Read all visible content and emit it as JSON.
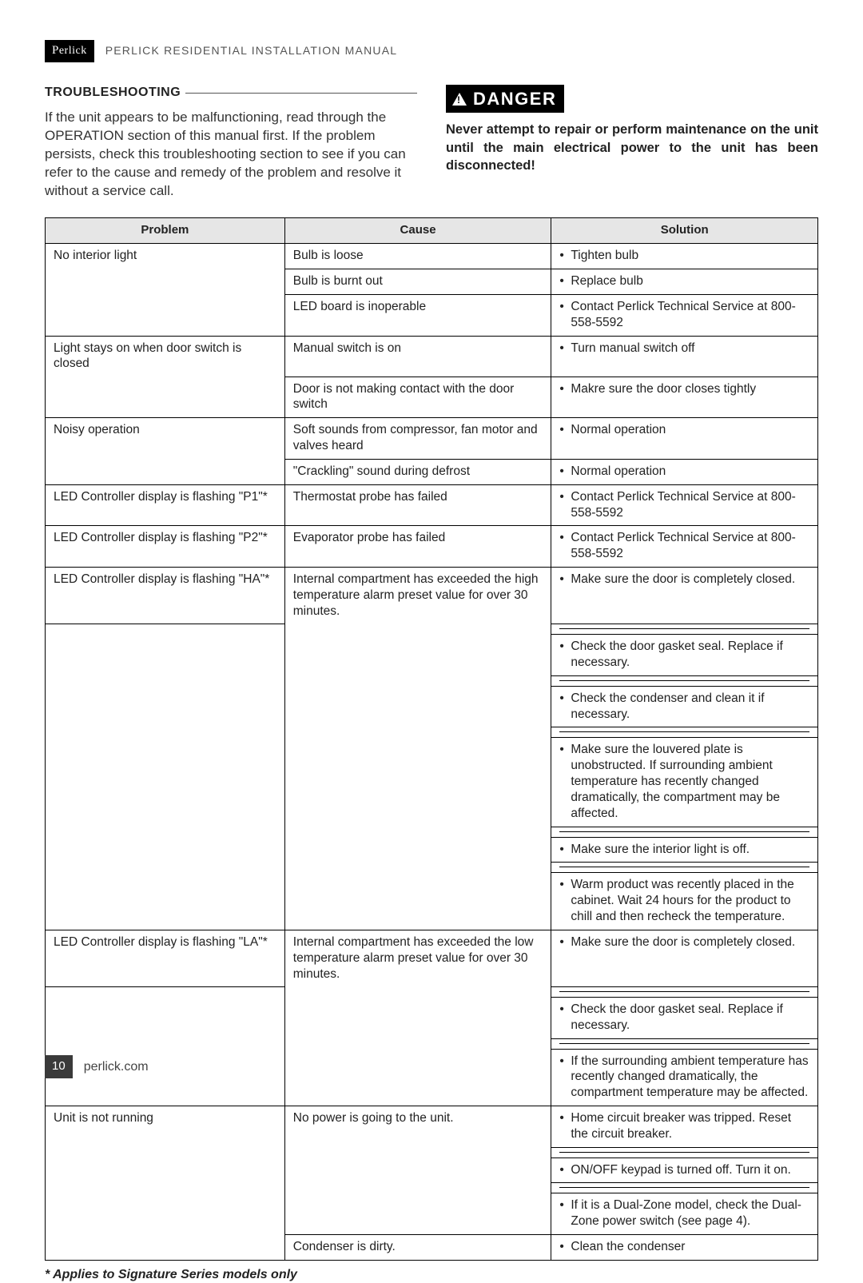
{
  "brand": "Perlick",
  "doc_title": "PERLICK RESIDENTIAL INSTALLATION MANUAL",
  "section_title": "TROUBLESHOOTING",
  "intro_text": "If the unit appears to be malfunctioning, read through the OPERATION section of this manual first. If the problem persists, check this troubleshooting section to see if you can refer to the cause and remedy of the problem and resolve it without a service call.",
  "danger_label": "DANGER",
  "danger_text": "Never attempt to repair or perform maintenance on the unit until the main electrical power to the unit has been disconnected!",
  "table": {
    "headers": [
      "Problem",
      "Cause",
      "Solution"
    ],
    "groups": [
      {
        "problem": "No interior light",
        "rows": [
          {
            "cause": "Bulb is loose",
            "solutions": [
              "Tighten bulb"
            ]
          },
          {
            "cause": "Bulb is burnt out",
            "solutions": [
              "Replace bulb"
            ]
          },
          {
            "cause": "LED board is inoperable",
            "solutions": [
              "Contact Perlick Technical Service at 800-558-5592"
            ]
          }
        ]
      },
      {
        "problem": "Light stays on when door switch is closed",
        "rows": [
          {
            "cause": "Manual switch is on",
            "solutions": [
              "Turn manual switch off"
            ]
          },
          {
            "cause": "Door is not making contact with the door switch",
            "solutions": [
              "Makre sure the door closes tightly"
            ]
          }
        ]
      },
      {
        "problem": "Noisy operation",
        "rows": [
          {
            "cause": "Soft sounds from compressor, fan motor and valves heard",
            "solutions": [
              "Normal operation"
            ]
          },
          {
            "cause": "\"Crackling\" sound during defrost",
            "solutions": [
              "Normal operation"
            ]
          }
        ]
      },
      {
        "problem": "LED Controller display is flashing \"P1\"*",
        "rows": [
          {
            "cause": "Thermostat probe has failed",
            "solutions": [
              "Contact Perlick Technical Service at 800-558-5592"
            ]
          }
        ]
      },
      {
        "problem": "LED Controller display is flashing \"P2\"*",
        "rows": [
          {
            "cause": "Evaporator probe has failed",
            "solutions": [
              "Contact Perlick Technical Service at 800-558-5592"
            ]
          }
        ]
      },
      {
        "problem": "LED Controller display is flashing \"HA\"*",
        "rows": [
          {
            "cause": "Internal compartment has exceeded the high temperature alarm preset value for over 30 minutes.",
            "solutions": [
              "Make sure the door is completely closed.",
              "Check the door gasket seal. Replace if necessary.",
              "Check the condenser and clean it if necessary.",
              "Make sure the louvered plate is unobstructed. If surrounding ambient temperature has recently changed dramatically, the compartment may be affected.",
              "Make sure the interior light is off.",
              "Warm product was recently placed in the cabinet. Wait 24 hours for the product to chill and then recheck the temperature."
            ]
          }
        ]
      },
      {
        "problem": "LED Controller display is flashing \"LA\"*",
        "rows": [
          {
            "cause": "Internal compartment has exceeded the low temperature alarm preset value for over 30 minutes.",
            "solutions": [
              "Make sure the door is completely closed.",
              "Check the door gasket seal. Replace if necessary.",
              "If the surrounding ambient temperature has recently changed dramatically, the compartment temperature  may be affected."
            ]
          }
        ]
      },
      {
        "problem": "Unit is not running",
        "rows": [
          {
            "cause": "No power is going to the unit.",
            "solutions": [
              "Home circuit breaker was tripped. Reset the circuit breaker.",
              "ON/OFF keypad is turned off. Turn it on.",
              "If it is a Dual-Zone model, check the Dual-Zone power switch (see page 4)."
            ]
          },
          {
            "cause": "Condenser is dirty.",
            "solutions": [
              "Clean the condenser"
            ]
          }
        ]
      }
    ]
  },
  "footnote": "* Applies to Signature Series models only",
  "page_number": "10",
  "footer_url": "perlick.com",
  "colors": {
    "header_bg": "#e6e6e6",
    "border": "#000000",
    "page_num_bg": "#3a3a3a",
    "text": "#222222"
  }
}
